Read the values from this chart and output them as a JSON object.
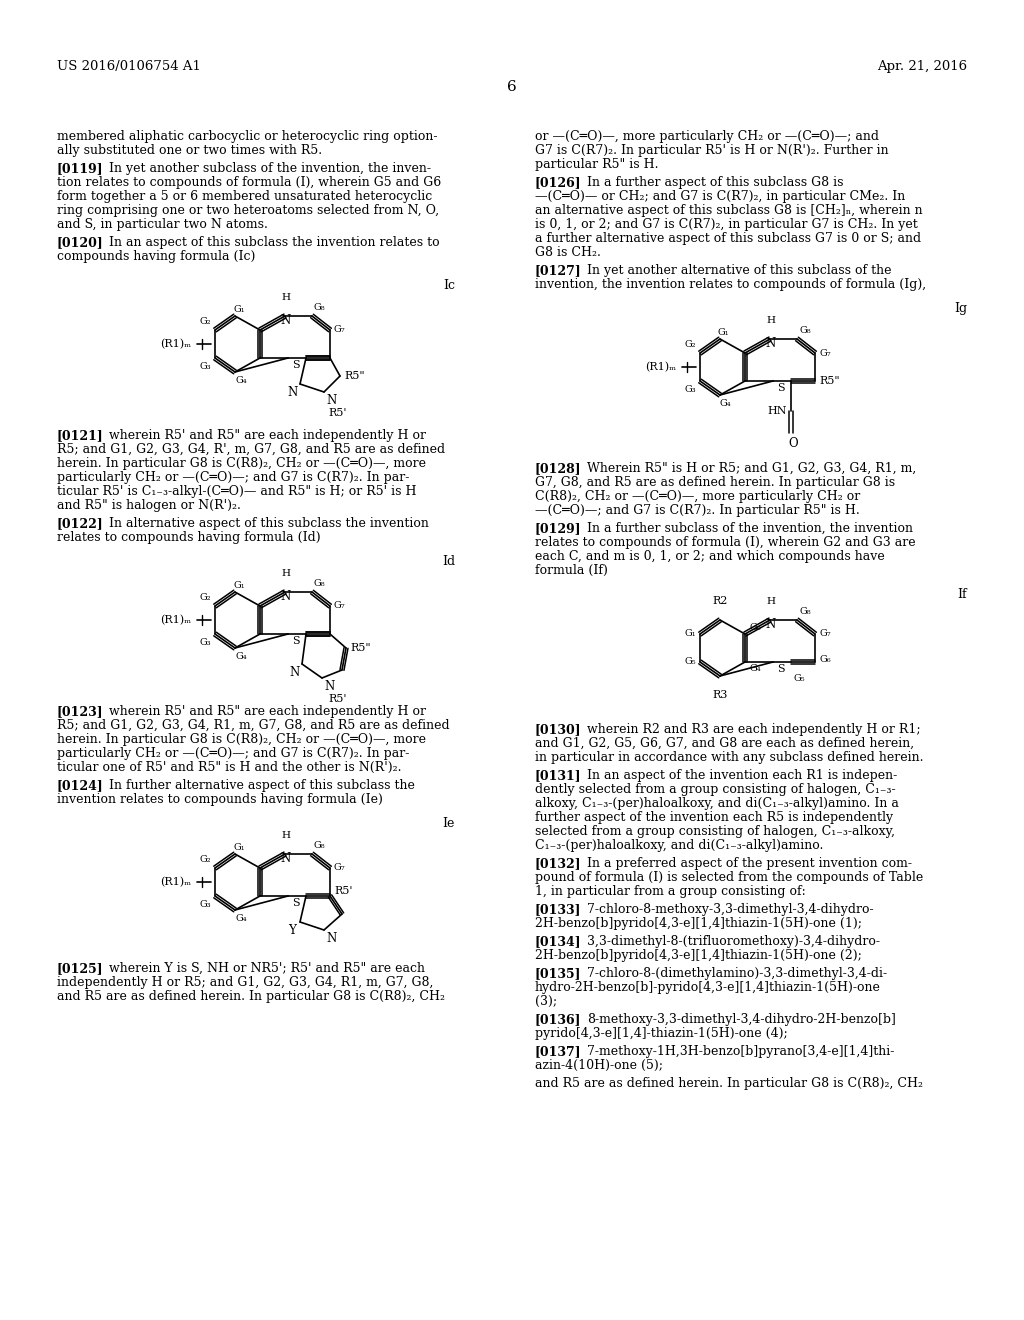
{
  "header_left": "US 2016/0106754 A1",
  "header_right": "Apr. 21, 2016",
  "page_num": "6",
  "bg": "#ffffff"
}
